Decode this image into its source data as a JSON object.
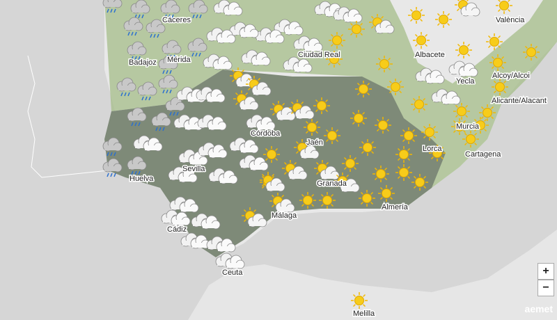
{
  "cities": [
    "Cáceres",
    "Mérida",
    "Badajoz",
    "Ciudad Real",
    "Albacete",
    "València",
    "Yecla",
    "Alcoy/Alcoi",
    "Alicante/Alacant",
    "Murcia",
    "Córdoba",
    "Jaén",
    "Sevilla",
    "Huelva",
    "Granada",
    "Lorca",
    "Cartagena",
    "Almería",
    "Málaga",
    "Cádiz",
    "Ceuta",
    "Melilla"
  ],
  "controls": {
    "zoom_in": "+",
    "zoom_out": "−"
  },
  "logo": "aemet"
}
